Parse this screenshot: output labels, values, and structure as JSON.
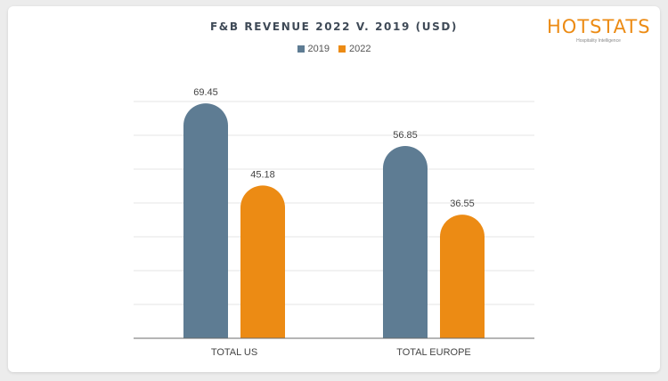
{
  "logo": {
    "word": "HOTSTATS",
    "tagline": "Hospitality Intelligence"
  },
  "colors": {
    "s2019": "#5e7c93",
    "s2022": "#ec8b14"
  },
  "chart_data": {
    "type": "bar",
    "title": "F&B REVENUE 2022 V. 2019 (USD)",
    "categories": [
      "TOTAL US",
      "TOTAL EUROPE"
    ],
    "series": [
      {
        "name": "2019",
        "values": [
          69.45,
          56.85
        ],
        "labels": [
          "69.45",
          "56.85"
        ]
      },
      {
        "name": "2022",
        "values": [
          45.18,
          36.55
        ],
        "labels": [
          "45.18",
          "36.55"
        ]
      }
    ],
    "ylim": [
      0,
      70
    ],
    "grid": true,
    "legend": "top-center",
    "xlabel": "",
    "ylabel": ""
  }
}
